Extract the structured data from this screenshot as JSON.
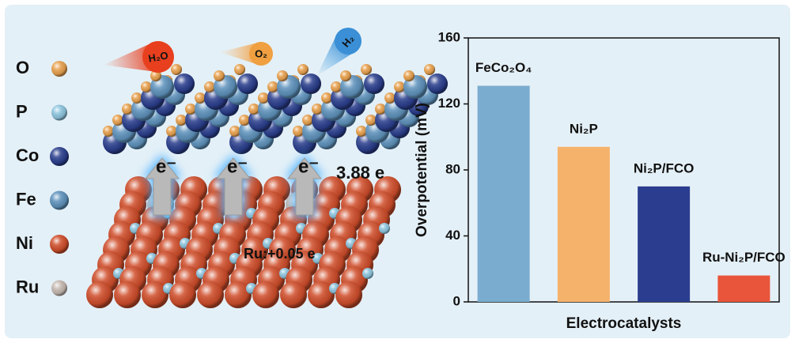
{
  "illustration": {
    "legend": [
      {
        "label": "O",
        "color": "#e9a24f"
      },
      {
        "label": "P",
        "color": "#8ec6df"
      },
      {
        "label": "Co",
        "color": "#2b3f8e"
      },
      {
        "label": "Fe",
        "color": "#5f93bd"
      },
      {
        "label": "Ni",
        "color": "#d04e2b"
      },
      {
        "label": "Ru",
        "color": "#c7bab2"
      }
    ],
    "molecules": [
      "H₂O",
      "O₂",
      "H₂"
    ],
    "electron_labels": [
      "e⁻",
      "e⁻",
      "e⁻"
    ],
    "charge_transfer": "3.88 e",
    "ru_charge": "Ru:+0.05 e"
  },
  "chart_data": {
    "type": "bar",
    "categories": [
      "FeCo₂O₄",
      "Ni₂P",
      "Ni₂P/FCO",
      "Ru-Ni₂P/FCO"
    ],
    "values": [
      131,
      94,
      70,
      16
    ],
    "colors": [
      "#7aaccf",
      "#f5b26b",
      "#2b3d8e",
      "#e8553a"
    ],
    "ylabel": "Overpotential (mV)",
    "xlabel": "Electrocatalysts",
    "ylim": [
      0,
      160
    ],
    "yticks": [
      0,
      40,
      80,
      120,
      160
    ]
  }
}
